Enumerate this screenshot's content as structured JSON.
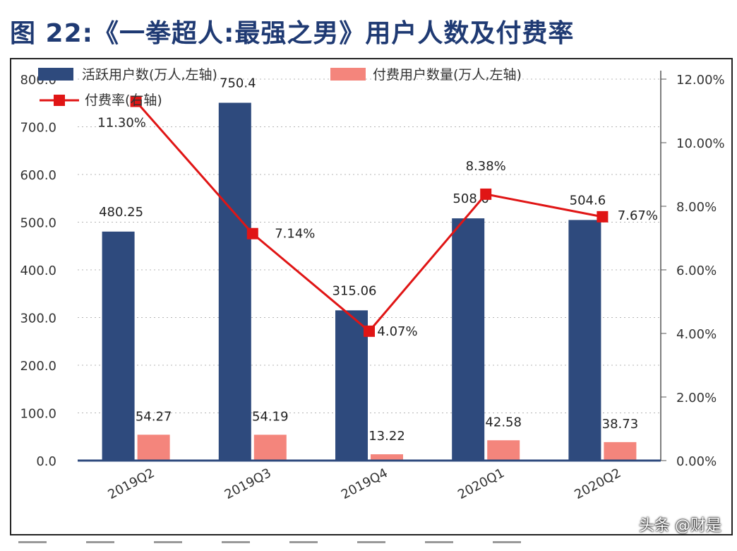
{
  "title": "图 22:《一拳超人:最强之男》用户人数及付费率",
  "watermark": "头条 @财是",
  "colors": {
    "bar_primary": "#2e4a7d",
    "bar_secondary": "#f4857c",
    "line": "#e01515",
    "title": "#1f3a73"
  },
  "chart_data": {
    "type": "bar",
    "categories": [
      "2019Q2",
      "2019Q3",
      "2019Q4",
      "2020Q1",
      "2020Q2"
    ],
    "y_left": {
      "ylim": [
        0,
        800
      ],
      "ticks": [
        "0.0",
        "100.0",
        "200.0",
        "300.0",
        "400.0",
        "500.0",
        "600.0",
        "700.0",
        "800.0"
      ]
    },
    "y_right": {
      "ylim": [
        0,
        12
      ],
      "ticks": [
        "0.00%",
        "2.00%",
        "4.00%",
        "6.00%",
        "8.00%",
        "10.00%",
        "12.00%"
      ]
    },
    "series": [
      {
        "name": "活跃用户数(万人,左轴)",
        "type": "bar",
        "axis": "left",
        "values": [
          480.25,
          750.4,
          315.06,
          508.0,
          504.6
        ],
        "labels": [
          "480.25",
          "750.4",
          "315.06",
          "508.0",
          "504.6"
        ]
      },
      {
        "name": "付费用户数量(万人,左轴)",
        "type": "bar",
        "axis": "left",
        "values": [
          54.27,
          54.19,
          13.22,
          42.58,
          38.73
        ],
        "labels": [
          "54.27",
          "54.19",
          "13.22",
          "42.58",
          "38.73"
        ]
      },
      {
        "name": "付费率(右轴)",
        "type": "line",
        "axis": "right",
        "values": [
          11.3,
          7.14,
          4.07,
          8.38,
          7.67
        ],
        "labels": [
          "11.30%",
          "7.14%",
          "4.07%",
          "8.38%",
          "7.67%"
        ]
      }
    ],
    "grid": true,
    "legend": "top"
  }
}
